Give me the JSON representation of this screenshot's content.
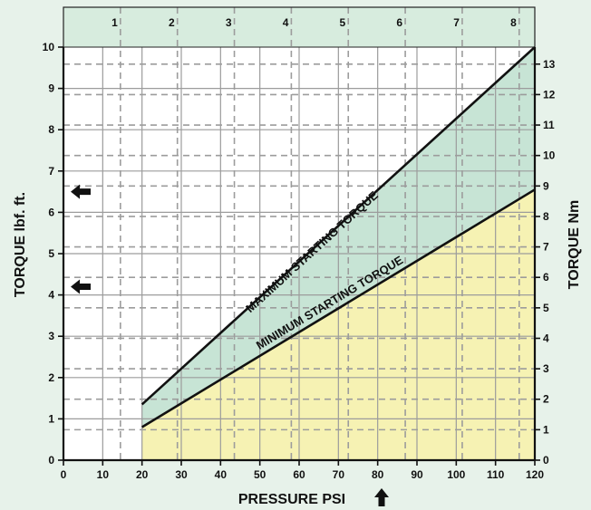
{
  "chart_data": {
    "type": "area",
    "xlabel": "PRESSURE PSI",
    "ylabel_left": "TORQUE lbf. ft.",
    "ylabel_right": "TORQUE Nm",
    "x": {
      "min": 0,
      "max": 120,
      "ticks": [
        0,
        10,
        20,
        30,
        40,
        50,
        60,
        70,
        80,
        90,
        100,
        110,
        120
      ]
    },
    "y_left": {
      "min": 0,
      "max": 10,
      "ticks": [
        0,
        1,
        2,
        3,
        4,
        5,
        6,
        7,
        8,
        9,
        10
      ]
    },
    "y_right": {
      "min": 0,
      "max": 13.558,
      "ticks": [
        0,
        1,
        2,
        3,
        4,
        5,
        6,
        7,
        8,
        9,
        10,
        11,
        12,
        13
      ]
    },
    "x_top": {
      "min": 0,
      "max": 8.274,
      "ticks": [
        1,
        2,
        3,
        4,
        5,
        6,
        7,
        8
      ]
    },
    "series": [
      {
        "name": "MAXIMUM STARTING TORQUE",
        "x": [
          20,
          120
        ],
        "y": [
          1.35,
          10.0
        ]
      },
      {
        "name": "MINIMUM STARTING TORQUE",
        "x": [
          20,
          120
        ],
        "y": [
          0.8,
          6.55
        ]
      }
    ],
    "annotations": [
      {
        "type": "arrow-left",
        "axis": "y_left",
        "value": 6.5
      },
      {
        "type": "arrow-left",
        "axis": "y_left",
        "value": 4.2
      },
      {
        "type": "arrow-up",
        "axis": "x",
        "value": 81
      }
    ],
    "colors": {
      "background": "#e7f2ea",
      "top_band": "#d7ecde",
      "plot": "#ffffff",
      "band_between": "#c7e4d5",
      "below_min": "#f6f2b3",
      "grid_solid": "#9c9c9c",
      "grid_dashed": "#9c9c9c",
      "lines": "#111111"
    }
  }
}
